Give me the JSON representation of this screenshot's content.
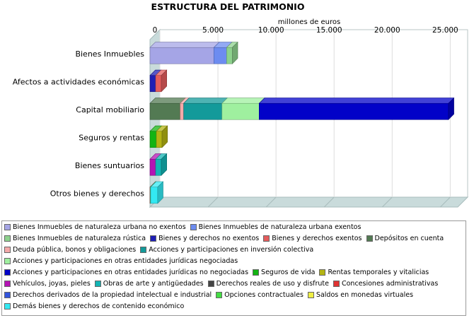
{
  "chart_data": {
    "type": "bar",
    "orientation": "horizontal",
    "stacked": true,
    "title": "ESTRUCTURA DEL PATRIMONIO",
    "xlabel": "millones de euros",
    "ylabel": "",
    "xlim": [
      0,
      26500
    ],
    "ticks": [
      0,
      5000,
      10000,
      15000,
      20000,
      25000
    ],
    "tick_labels": [
      "0",
      "5.000",
      "10.000",
      "15.000",
      "20.000",
      "25.000"
    ],
    "categories": [
      "Bienes Inmuebles",
      "Afectos a actividades económicas",
      "Capital mobiliario",
      "Seguros y rentas",
      "Bienes suntuarios",
      "Otros bienes y derechos"
    ],
    "legend_position": "bottom",
    "series": [
      {
        "name": "Bienes Inmuebles de naturaleza urbana no exentos",
        "color": "#a5a5e6",
        "values": [
          5500,
          0,
          0,
          0,
          0,
          0
        ]
      },
      {
        "name": "Bienes Inmuebles de naturaleza urbana exentos",
        "color": "#6d8cf0",
        "values": [
          1100,
          0,
          0,
          0,
          0,
          0
        ]
      },
      {
        "name": "Bienes Inmuebles de naturaleza rústica",
        "color": "#8dd28d",
        "values": [
          150,
          0,
          0,
          0,
          0,
          0
        ]
      },
      {
        "name": "Bienes y derechos no exentos",
        "color": "#1f1fb4",
        "values": [
          0,
          40,
          0,
          0,
          0,
          0
        ]
      },
      {
        "name": "Bienes y derechos exentos",
        "color": "#e35c5c",
        "values": [
          0,
          350,
          0,
          0,
          0,
          0
        ]
      },
      {
        "name": "Depósitos en cuenta",
        "color": "#537a53",
        "values": [
          0,
          0,
          2600,
          0,
          0,
          0
        ]
      },
      {
        "name": "Deuda pública, bonos y obligaciones",
        "color": "#f4a9a9",
        "values": [
          0,
          0,
          300,
          0,
          0,
          0
        ]
      },
      {
        "name": "Acciones y participaciones en inversión colectiva",
        "color": "#139a9a",
        "values": [
          0,
          0,
          3300,
          0,
          0,
          0
        ]
      },
      {
        "name": "Acciones y participaciones en otras entidades jurídicas negociadas",
        "color": "#9ff09f",
        "values": [
          0,
          0,
          3200,
          0,
          0,
          0
        ]
      },
      {
        "name": "Acciones y participaciones en otras entidades jurídicas no negociadas",
        "color": "#0202c8",
        "values": [
          0,
          0,
          16300,
          0,
          0,
          0
        ]
      },
      {
        "name": "Seguros de vida",
        "color": "#13b413",
        "values": [
          0,
          0,
          0,
          550,
          0,
          0
        ]
      },
      {
        "name": "Rentas temporales y vitalicias",
        "color": "#b4b413",
        "values": [
          0,
          0,
          0,
          30,
          0,
          0
        ]
      },
      {
        "name": "Vehículos, joyas, pieles",
        "color": "#b413b4",
        "values": [
          0,
          0,
          0,
          0,
          20,
          0
        ]
      },
      {
        "name": "Obras de arte y antigüedades",
        "color": "#13b4b4",
        "values": [
          0,
          0,
          0,
          0,
          60,
          0
        ]
      },
      {
        "name": "Derechos reales de uso y disfrute",
        "color": "#444444",
        "values": [
          0,
          0,
          0,
          0,
          0,
          10
        ]
      },
      {
        "name": "Concesiones administrativas",
        "color": "#e03333",
        "values": [
          0,
          0,
          0,
          0,
          0,
          10
        ]
      },
      {
        "name": "Derechos derivados de la propiedad intelectual e industrial",
        "color": "#3355dd",
        "values": [
          0,
          0,
          0,
          0,
          0,
          10
        ]
      },
      {
        "name": "Opciones contractuales",
        "color": "#44dd44",
        "values": [
          0,
          0,
          0,
          0,
          0,
          20
        ]
      },
      {
        "name": "Saldos en monedas virtuales",
        "color": "#eeee44",
        "values": [
          0,
          0,
          0,
          0,
          0,
          10
        ]
      },
      {
        "name": "Demás bienes y derechos de contenido económico",
        "color": "#33e9f2",
        "values": [
          0,
          0,
          0,
          0,
          0,
          600
        ]
      }
    ]
  }
}
